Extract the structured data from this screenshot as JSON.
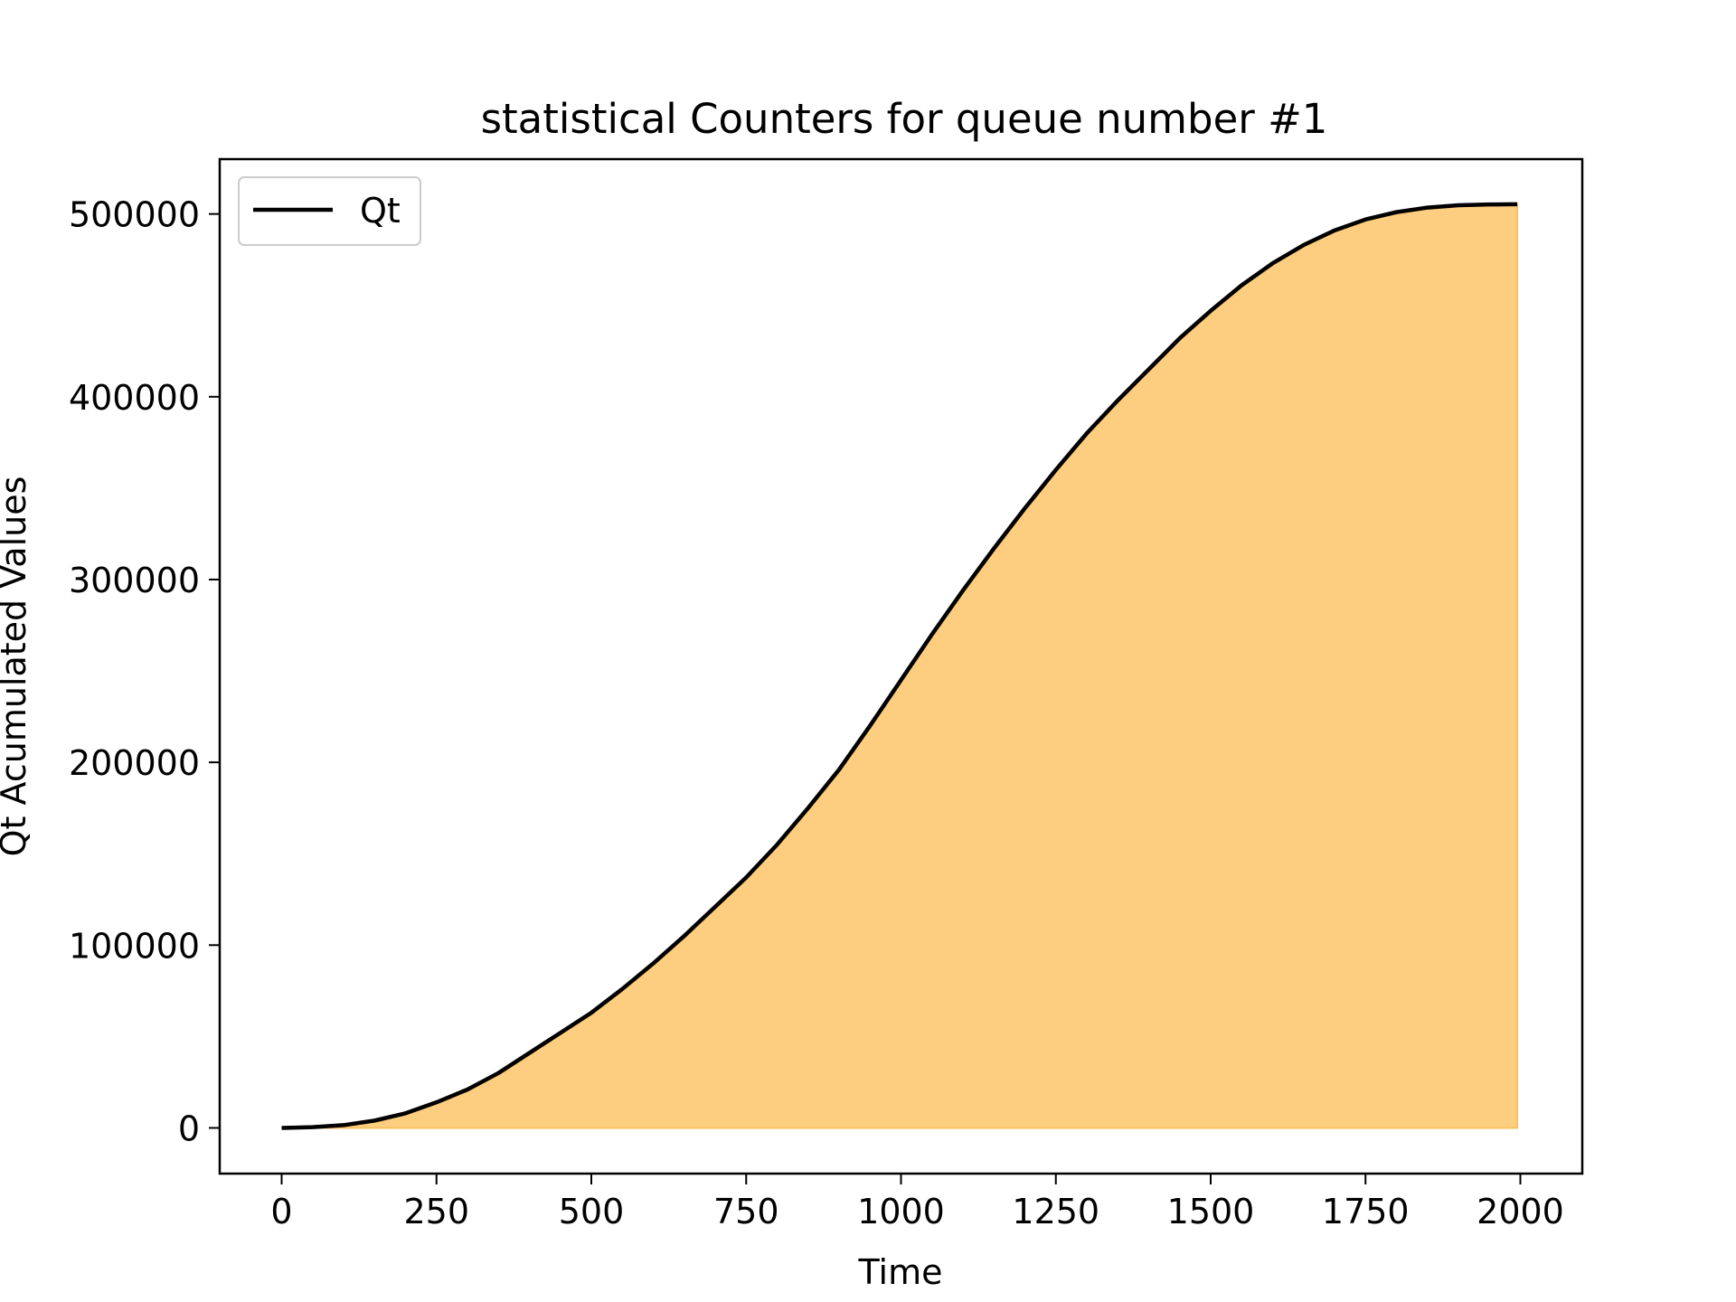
{
  "chart_data": {
    "type": "area",
    "title": "statistical Counters for queue number #1",
    "xlabel": "Time",
    "ylabel": "Qt Acumulated Values",
    "xlim": [
      -100,
      2100
    ],
    "ylim": [
      -25000,
      530000
    ],
    "xticks": [
      0,
      250,
      500,
      750,
      1000,
      1250,
      1500,
      1750,
      2000
    ],
    "yticks": [
      0,
      100000,
      200000,
      300000,
      400000,
      500000
    ],
    "grid": false,
    "legend": {
      "placement": "top-left"
    },
    "colors": {
      "line": "#000000",
      "fill": "#fdce7f",
      "fill_edge": "#f8c060",
      "axes": "#000000"
    },
    "series": [
      {
        "name": "Qt",
        "x": [
          0,
          50,
          100,
          150,
          200,
          250,
          300,
          350,
          400,
          450,
          500,
          550,
          600,
          650,
          700,
          750,
          800,
          850,
          900,
          950,
          1000,
          1050,
          1100,
          1150,
          1200,
          1250,
          1300,
          1350,
          1400,
          1450,
          1500,
          1550,
          1600,
          1650,
          1700,
          1750,
          1800,
          1850,
          1900,
          1950,
          1995
        ],
        "y": [
          0,
          400,
          1500,
          4000,
          8000,
          14000,
          21000,
          30000,
          41000,
          52000,
          63000,
          76000,
          90000,
          105000,
          121000,
          137000,
          155000,
          175000,
          196000,
          220000,
          245000,
          270000,
          294000,
          317000,
          339000,
          360000,
          380000,
          398000,
          415000,
          432000,
          447000,
          461000,
          473000,
          483000,
          491000,
          497000,
          501000,
          503500,
          504800,
          505200,
          505300
        ]
      }
    ]
  }
}
